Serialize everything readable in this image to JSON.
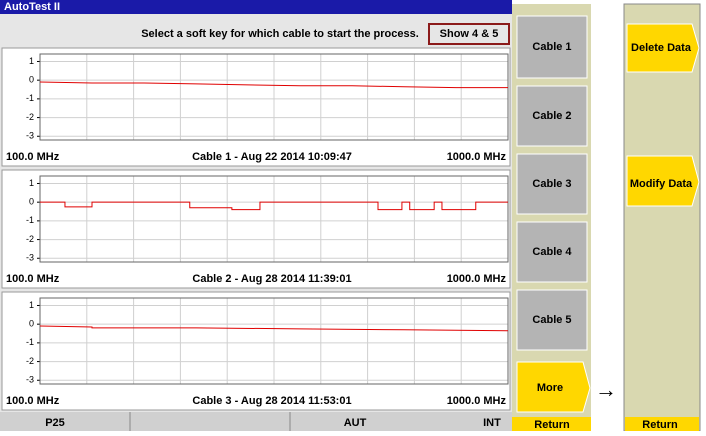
{
  "title": "AutoTest II",
  "prompt": "Select a soft key for which cable to start the process.",
  "show_button": "Show 4 & 5",
  "chart_data": [
    {
      "type": "line",
      "left_label": "100.0 MHz",
      "caption": "Cable 1 - Aug 22 2014 10:09:47",
      "right_label": "1000.0 MHz",
      "color": "#e00000",
      "grid": true,
      "x": [
        100,
        200,
        300,
        400,
        500,
        600,
        700,
        800,
        900,
        1000
      ],
      "values": [
        -0.1,
        -0.15,
        -0.15,
        -0.2,
        -0.25,
        -0.3,
        -0.3,
        -0.35,
        -0.4,
        -0.4
      ],
      "xlim": [
        100,
        1000
      ],
      "xticks": [
        100,
        190,
        280,
        370,
        460,
        550,
        640,
        730,
        820,
        910,
        1000
      ],
      "ylim": [
        -3.2,
        1.4
      ],
      "yticks": [
        1,
        0,
        -1,
        -2,
        -3
      ]
    },
    {
      "type": "line",
      "left_label": "100.0 MHz",
      "caption": "Cable 2 - Aug 28 2014 11:39:01",
      "right_label": "1000.0 MHz",
      "color": "#e00000",
      "grid": true,
      "x": [
        100,
        148,
        148,
        200,
        200,
        388,
        388,
        469,
        469,
        523,
        523,
        750,
        750,
        796,
        796,
        811,
        811,
        858,
        858,
        873,
        873,
        938,
        938,
        1000
      ],
      "values": [
        0,
        0,
        -0.25,
        -0.25,
        0,
        0,
        -0.3,
        -0.3,
        -0.4,
        -0.4,
        0,
        0,
        -0.4,
        -0.4,
        0,
        0,
        -0.4,
        -0.4,
        0,
        0,
        -0.4,
        -0.4,
        0,
        0
      ],
      "xlim": [
        100,
        1000
      ],
      "xticks": [
        100,
        190,
        280,
        370,
        460,
        550,
        640,
        730,
        820,
        910,
        1000
      ],
      "ylim": [
        -3.2,
        1.4
      ],
      "yticks": [
        1,
        0,
        -1,
        -2,
        -3
      ]
    },
    {
      "type": "line",
      "left_label": "100.0 MHz",
      "caption": "Cable 3 - Aug 28 2014 11:53:01",
      "right_label": "1000.0 MHz",
      "color": "#e00000",
      "grid": true,
      "x": [
        100,
        200,
        200,
        400,
        600,
        800,
        1000
      ],
      "values": [
        -0.1,
        -0.15,
        -0.2,
        -0.2,
        -0.25,
        -0.3,
        -0.35
      ],
      "xlim": [
        100,
        1000
      ],
      "xticks": [
        100,
        190,
        280,
        370,
        460,
        550,
        640,
        730,
        820,
        910,
        1000
      ],
      "ylim": [
        -3.2,
        1.4
      ],
      "yticks": [
        1,
        0,
        -1,
        -2,
        -3
      ]
    }
  ],
  "softkeys": [
    "Cable 1",
    "Cable 2",
    "Cable 3",
    "Cable 4",
    "Cable 5",
    "More"
  ],
  "softkey_return": "Return",
  "menu2": [
    "Delete Data",
    "Modify Data"
  ],
  "menu2_return": "Return",
  "status": [
    "P25",
    "AUT",
    "INT"
  ]
}
